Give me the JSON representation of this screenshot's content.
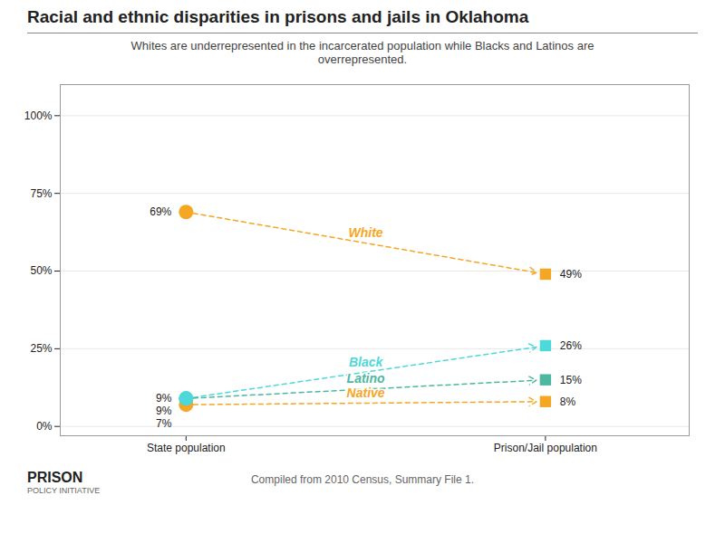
{
  "chart_data": {
    "type": "slope",
    "title": "Racial and ethnic disparities in prisons and jails in Oklahoma",
    "subtitle": "Whites are underrepresented in the incarcerated population while Blacks and Latinos are\noverrepresented.",
    "categories": [
      "State population",
      "Prison/Jail population"
    ],
    "series": [
      {
        "name": "White",
        "color": "#f5a623",
        "values": [
          69,
          49
        ],
        "value_labels": [
          "69%",
          "49%"
        ]
      },
      {
        "name": "Black",
        "color": "#4dd9d9",
        "values": [
          9,
          26
        ],
        "value_labels": [
          "9%",
          "26%"
        ]
      },
      {
        "name": "Latino",
        "color": "#4db89e",
        "values": [
          9,
          15
        ],
        "value_labels": [
          "9%",
          "15%"
        ]
      },
      {
        "name": "Native",
        "color": "#f5a623",
        "values": [
          7,
          8
        ],
        "value_labels": [
          "7%",
          "8%"
        ]
      }
    ],
    "ylim": [
      -3,
      110
    ],
    "yticks": [
      {
        "value": 0,
        "label": "0%"
      },
      {
        "value": 25,
        "label": "25%"
      },
      {
        "value": 50,
        "label": "50%"
      },
      {
        "value": 75,
        "label": "75%"
      },
      {
        "value": 100,
        "label": "100%"
      }
    ],
    "grid": true,
    "data_labels": true,
    "annotations": [
      "PRISON",
      "POLICY INITIATIVE",
      "Compiled from 2010 Census, Summary File 1."
    ]
  }
}
